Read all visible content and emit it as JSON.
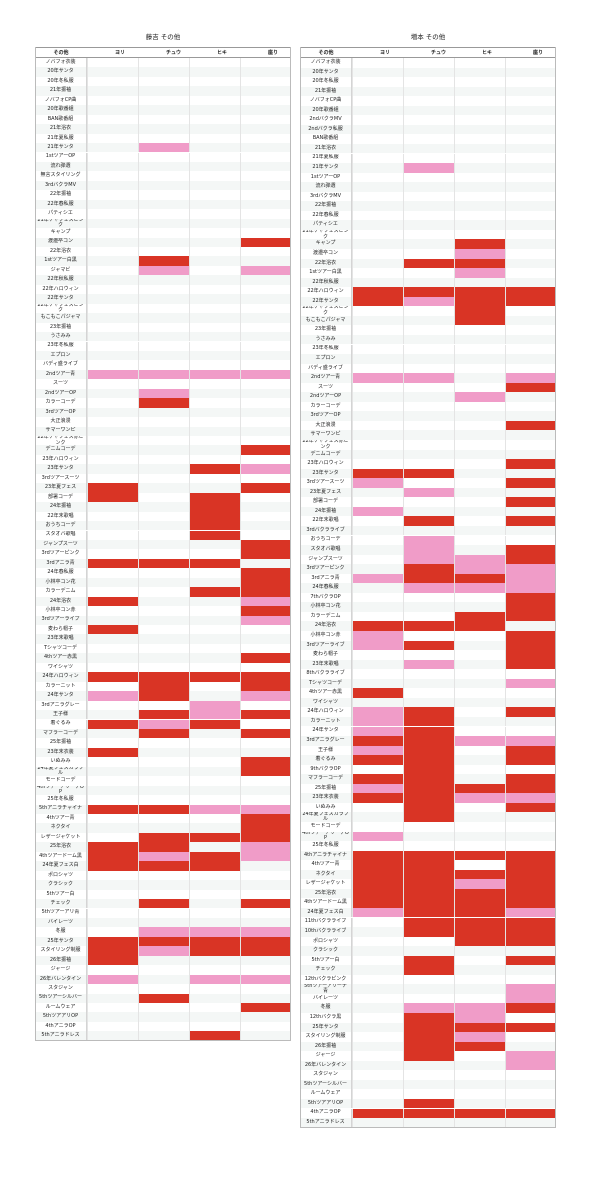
{
  "tables": [
    {
      "title": "藤吉 その他",
      "headers": [
        "その他",
        "ヨリ",
        "チュウ",
        "ヒキ",
        "座り"
      ],
      "rows": [
        {
          "name": "ノバフォ衣装",
          "cells": "----"
        },
        {
          "name": "20年サンタ",
          "cells": "----"
        },
        {
          "name": "20年冬私服",
          "cells": "----"
        },
        {
          "name": "21年振袖",
          "cells": "----"
        },
        {
          "name": "ノバフォCP曲",
          "cells": "----"
        },
        {
          "name": "20年歌番組",
          "cells": "----"
        },
        {
          "name": "BAN歌番組",
          "cells": "----"
        },
        {
          "name": "21年浴衣",
          "cells": "----"
        },
        {
          "name": "21年夏私服",
          "cells": "----"
        },
        {
          "name": "21年サンタ",
          "cells": "-p--"
        },
        {
          "name": "1stツアーOP",
          "cells": "----"
        },
        {
          "name": "流れ弾選",
          "cells": "----"
        },
        {
          "name": "無言スタイリング",
          "cells": "----"
        },
        {
          "name": "3rdバクラMV",
          "cells": "----"
        },
        {
          "name": "22年振袖",
          "cells": "----"
        },
        {
          "name": "22年春私服",
          "cells": "----"
        },
        {
          "name": "パティシエ",
          "cells": "----"
        },
        {
          "name": "21年ケヤフェスピンク",
          "cells": "----"
        },
        {
          "name": "キャンプ",
          "cells": "----"
        },
        {
          "name": "渡邉卒コン",
          "cells": "---d"
        },
        {
          "name": "22年浴衣",
          "cells": "----"
        },
        {
          "name": "1stツアー白黒",
          "cells": "-d--"
        },
        {
          "name": "ジャマビ",
          "cells": "-p-p"
        },
        {
          "name": "22年秋私服",
          "cells": "----"
        },
        {
          "name": "22年ハロウィン",
          "cells": "----"
        },
        {
          "name": "22年サンタ",
          "cells": "----"
        },
        {
          "name": "22年ケヤフェスピンク",
          "cells": "----"
        },
        {
          "name": "もこもこパジャマ",
          "cells": "----"
        },
        {
          "name": "23年振袖",
          "cells": "----"
        },
        {
          "name": "うさみみ",
          "cells": "----"
        },
        {
          "name": "23年冬私服",
          "cells": "----"
        },
        {
          "name": "エプロン",
          "cells": "----"
        },
        {
          "name": "バディ盛ライブ",
          "cells": "----"
        },
        {
          "name": "2ndツアー青",
          "cells": "pppp"
        },
        {
          "name": "スーツ",
          "cells": "----"
        },
        {
          "name": "2ndツアーOP",
          "cells": "-p--"
        },
        {
          "name": "カラーコーデ",
          "cells": "-d--"
        },
        {
          "name": "3rdツアーOP",
          "cells": "----"
        },
        {
          "name": "大正浪漫",
          "cells": "----"
        },
        {
          "name": "サマーワンピ",
          "cells": "----"
        },
        {
          "name": "22年ケヤフェス赤ピンク",
          "cells": "----"
        },
        {
          "name": "デニムコーデ",
          "cells": "---d"
        },
        {
          "name": "23年ハロウィン",
          "cells": "----"
        },
        {
          "name": "23年サンタ",
          "cells": "--dp"
        },
        {
          "name": "3rdツアースーツ",
          "cells": "----"
        },
        {
          "name": "23年夏フェス",
          "cells": "d--d"
        },
        {
          "name": "部署コーデ",
          "cells": "d-d-"
        },
        {
          "name": "24年振袖",
          "cells": "--d-"
        },
        {
          "name": "22年末歌唱",
          "cells": "--d-"
        },
        {
          "name": "おうちコーデ",
          "cells": "--d-"
        },
        {
          "name": "スタオバ歌唱",
          "cells": "--d-"
        },
        {
          "name": "ジャンプスーツ",
          "cells": "---d"
        },
        {
          "name": "3rdツアーピンク",
          "cells": "---d"
        },
        {
          "name": "3rdアニラ青",
          "cells": "ddd-"
        },
        {
          "name": "24年春私服",
          "cells": "---d"
        },
        {
          "name": "小林卒コン花",
          "cells": "---d"
        },
        {
          "name": "カラーデニム",
          "cells": "--dd"
        },
        {
          "name": "24年浴衣",
          "cells": "d--p"
        },
        {
          "name": "小林卒コン赤",
          "cells": "---d"
        },
        {
          "name": "3rdツアーライブ",
          "cells": "---p"
        },
        {
          "name": "麦わら帽子",
          "cells": "d---"
        },
        {
          "name": "23年末歌唱",
          "cells": "----"
        },
        {
          "name": "Tシャツコーデ",
          "cells": "----"
        },
        {
          "name": "4thツアー赤黒",
          "cells": "---d"
        },
        {
          "name": "ワイシャツ",
          "cells": "----"
        },
        {
          "name": "24年ハロウィン",
          "cells": "dddd"
        },
        {
          "name": "カラーニット",
          "cells": "-d-d"
        },
        {
          "name": "24年サンタ",
          "cells": "pd-p"
        },
        {
          "name": "3rdアニラグレー",
          "cells": "--p-"
        },
        {
          "name": "王子様",
          "cells": "-dpd"
        },
        {
          "name": "着ぐるみ",
          "cells": "dpd-"
        },
        {
          "name": "マフラーコーデ",
          "cells": "-d-d"
        },
        {
          "name": "25年振袖",
          "cells": "----"
        },
        {
          "name": "23年末衣装",
          "cells": "d---"
        },
        {
          "name": "いぬみみ",
          "cells": "---d"
        },
        {
          "name": "24年夏フェスカラフル",
          "cells": "---d"
        },
        {
          "name": "モードコーデ",
          "cells": "----"
        },
        {
          "name": "4thツアーアリーナOP",
          "cells": "----"
        },
        {
          "name": "25年冬私服",
          "cells": "----"
        },
        {
          "name": "5thアニラチャイナ",
          "cells": "ddpp"
        },
        {
          "name": "4thツアー青",
          "cells": "---d"
        },
        {
          "name": "ネクタイ",
          "cells": "---d"
        },
        {
          "name": "レザージャケット",
          "cells": "-ddd"
        },
        {
          "name": "25年浴衣",
          "cells": "dd-p"
        },
        {
          "name": "4thツアードーム黒",
          "cells": "dpdp"
        },
        {
          "name": "24年夏フェス白",
          "cells": "ddd-"
        },
        {
          "name": "ポロシャツ",
          "cells": "----"
        },
        {
          "name": "クラシック",
          "cells": "----"
        },
        {
          "name": "5thツアー白",
          "cells": "----"
        },
        {
          "name": "チェック",
          "cells": "-d-d"
        },
        {
          "name": "5thツアーアリ青",
          "cells": "----"
        },
        {
          "name": "バイレーツ",
          "cells": "----"
        },
        {
          "name": "冬服",
          "cells": "-ppp"
        },
        {
          "name": "25年サンタ",
          "cells": "dddd"
        },
        {
          "name": "スタイリング制服",
          "cells": "dpdd"
        },
        {
          "name": "26年振袖",
          "cells": "d---"
        },
        {
          "name": "ジャージ",
          "cells": "----"
        },
        {
          "name": "26年バレンタイン",
          "cells": "p-pp"
        },
        {
          "name": "スタジャン",
          "cells": "----"
        },
        {
          "name": "5thツアーシルバー",
          "cells": "-d--"
        },
        {
          "name": "ルームウェア",
          "cells": "---d"
        },
        {
          "name": "5thツアアリOP",
          "cells": "----"
        },
        {
          "name": "4thアニラOP",
          "cells": "----"
        },
        {
          "name": "5thアニラドレス",
          "cells": "--d-"
        }
      ]
    },
    {
      "title": "増本 その他",
      "headers": [
        "その他",
        "ヨリ",
        "チュウ",
        "ヒキ",
        "座り"
      ],
      "rows": [
        {
          "name": "ノバフォ衣装",
          "cells": "----"
        },
        {
          "name": "20年サンタ",
          "cells": "----"
        },
        {
          "name": "20年冬私服",
          "cells": "----"
        },
        {
          "name": "21年振袖",
          "cells": "----"
        },
        {
          "name": "ノバフォCP曲",
          "cells": "----"
        },
        {
          "name": "20年歌番組",
          "cells": "----"
        },
        {
          "name": "2ndバクラMV",
          "cells": "----"
        },
        {
          "name": "2ndバクラ私服",
          "cells": "----"
        },
        {
          "name": "BAN歌番組",
          "cells": "----"
        },
        {
          "name": "21年浴衣",
          "cells": "----"
        },
        {
          "name": "21年夏私服",
          "cells": "----"
        },
        {
          "name": "21年サンタ",
          "cells": "-p--"
        },
        {
          "name": "1stツアーOP",
          "cells": "----"
        },
        {
          "name": "流れ弾選",
          "cells": "----"
        },
        {
          "name": "3rdバクラMV",
          "cells": "----"
        },
        {
          "name": "22年振袖",
          "cells": "----"
        },
        {
          "name": "22年春私服",
          "cells": "----"
        },
        {
          "name": "パティシエ",
          "cells": "----"
        },
        {
          "name": "21年ケヤフェスピンク",
          "cells": "----"
        },
        {
          "name": "キャンプ",
          "cells": "--d-"
        },
        {
          "name": "渡邉卒コン",
          "cells": "--p-"
        },
        {
          "name": "22年浴衣",
          "cells": "-dd-"
        },
        {
          "name": "1stツアー白黒",
          "cells": "--p-"
        },
        {
          "name": "22年秋私服",
          "cells": "----"
        },
        {
          "name": "22年ハロウィン",
          "cells": "dddd"
        },
        {
          "name": "22年サンタ",
          "cells": "dpdd"
        },
        {
          "name": "22年ケヤフェスピンク",
          "cells": "--d-"
        },
        {
          "name": "もこもこパジャマ",
          "cells": "--d-"
        },
        {
          "name": "23年振袖",
          "cells": "----"
        },
        {
          "name": "うさみみ",
          "cells": "----"
        },
        {
          "name": "23年冬私服",
          "cells": "----"
        },
        {
          "name": "エプロン",
          "cells": "----"
        },
        {
          "name": "バディ盛ライブ",
          "cells": "----"
        },
        {
          "name": "2ndツアー青",
          "cells": "pp-p"
        },
        {
          "name": "スーツ",
          "cells": "---d"
        },
        {
          "name": "2ndツアーOP",
          "cells": "--p-"
        },
        {
          "name": "カラーコーデ",
          "cells": "----"
        },
        {
          "name": "3rdツアーOP",
          "cells": "----"
        },
        {
          "name": "大正浪漫",
          "cells": "---d"
        },
        {
          "name": "サマーワンピ",
          "cells": "----"
        },
        {
          "name": "22年ケヤフェス赤ピンク",
          "cells": "----"
        },
        {
          "name": "デニムコーデ",
          "cells": "----"
        },
        {
          "name": "23年ハロウィン",
          "cells": "---d"
        },
        {
          "name": "23年サンタ",
          "cells": "dd--"
        },
        {
          "name": "3rdツアースーツ",
          "cells": "p--d"
        },
        {
          "name": "23年夏フェス",
          "cells": "-p--"
        },
        {
          "name": "部署コーデ",
          "cells": "---d"
        },
        {
          "name": "24年振袖",
          "cells": "p---"
        },
        {
          "name": "22年末歌唱",
          "cells": "-d-d"
        },
        {
          "name": "3rdバクラライブ",
          "cells": "----"
        },
        {
          "name": "おうちコーデ",
          "cells": "-p--"
        },
        {
          "name": "スタオバ歌唱",
          "cells": "-p-d"
        },
        {
          "name": "ジャンプスーツ",
          "cells": "-ppd"
        },
        {
          "name": "3rdツアーピンク",
          "cells": "-dpp"
        },
        {
          "name": "3rdアニラ青",
          "cells": "pddp"
        },
        {
          "name": "24年春私服",
          "cells": "-ppp"
        },
        {
          "name": "7thバクラOP",
          "cells": "---d"
        },
        {
          "name": "小林卒コン花",
          "cells": "---d"
        },
        {
          "name": "カラーデニム",
          "cells": "--dd"
        },
        {
          "name": "24年浴衣",
          "cells": "ddd-"
        },
        {
          "name": "小林卒コン赤",
          "cells": "p--d"
        },
        {
          "name": "3rdツアーライブ",
          "cells": "pd-d"
        },
        {
          "name": "麦わら帽子",
          "cells": "---d"
        },
        {
          "name": "23年末歌唱",
          "cells": "-p-d"
        },
        {
          "name": "8thバクラライブ",
          "cells": "----"
        },
        {
          "name": "Tシャツコーデ",
          "cells": "---p"
        },
        {
          "name": "4thツアー赤黒",
          "cells": "d---"
        },
        {
          "name": "ワイシャツ",
          "cells": "----"
        },
        {
          "name": "24年ハロウィン",
          "cells": "pd-d"
        },
        {
          "name": "カラーニット",
          "cells": "pd--"
        },
        {
          "name": "24年サンタ",
          "cells": "pd--"
        },
        {
          "name": "3rdアニラグレー",
          "cells": "ddpp"
        },
        {
          "name": "王子様",
          "cells": "pd-d"
        },
        {
          "name": "着ぐるみ",
          "cells": "dd-d"
        },
        {
          "name": "9thバクラOP",
          "cells": "-d--"
        },
        {
          "name": "マフラーコーデ",
          "cells": "dd-d"
        },
        {
          "name": "25年振袖",
          "cells": "pddd"
        },
        {
          "name": "23年末衣装",
          "cells": "ddpp"
        },
        {
          "name": "いぬみみ",
          "cells": "-d-d"
        },
        {
          "name": "24年夏フェスカラフル",
          "cells": "-d--"
        },
        {
          "name": "モードコーデ",
          "cells": "----"
        },
        {
          "name": "4thツアーアリーナOP",
          "cells": "p---"
        },
        {
          "name": "25年冬私服",
          "cells": "----"
        },
        {
          "name": "4thアニラチャイナ",
          "cells": "dddd"
        },
        {
          "name": "4thツアー青",
          "cells": "dd-d"
        },
        {
          "name": "ネクタイ",
          "cells": "dddd"
        },
        {
          "name": "レザージャケット",
          "cells": "ddpd"
        },
        {
          "name": "25年浴衣",
          "cells": "dddd"
        },
        {
          "name": "4thツアードーム黒",
          "cells": "dddd"
        },
        {
          "name": "24年夏フェス白",
          "cells": "pddp"
        },
        {
          "name": "11thバクラライブ",
          "cells": "-ddd"
        },
        {
          "name": "10thバクラライブ",
          "cells": "-ddd"
        },
        {
          "name": "ポロシャツ",
          "cells": "--dd"
        },
        {
          "name": "クラシック",
          "cells": "----"
        },
        {
          "name": "5thツアー白",
          "cells": "-d-d"
        },
        {
          "name": "チェック",
          "cells": "-d--"
        },
        {
          "name": "12thバクラピンク",
          "cells": "----"
        },
        {
          "name": "5thツアーアリーナ青",
          "cells": "---p"
        },
        {
          "name": "バイレーツ",
          "cells": "---p"
        },
        {
          "name": "冬服",
          "cells": "-ppd"
        },
        {
          "name": "12thバクラ黒",
          "cells": "-dp-"
        },
        {
          "name": "25年サンタ",
          "cells": "-ddd"
        },
        {
          "name": "スタイリング制服",
          "cells": "-dp-"
        },
        {
          "name": "26年振袖",
          "cells": "-dd-"
        },
        {
          "name": "ジャージ",
          "cells": "-d-p"
        },
        {
          "name": "26年バレンタイン",
          "cells": "---p"
        },
        {
          "name": "スタジャン",
          "cells": "----"
        },
        {
          "name": "5thツアーシルバー",
          "cells": "----"
        },
        {
          "name": "ルームウェア",
          "cells": "----"
        },
        {
          "name": "5thツアアリOP",
          "cells": "-d--"
        },
        {
          "name": "4thアニラOP",
          "cells": "dddd"
        },
        {
          "name": "5thアニラドレス",
          "cells": "----"
        }
      ]
    }
  ]
}
